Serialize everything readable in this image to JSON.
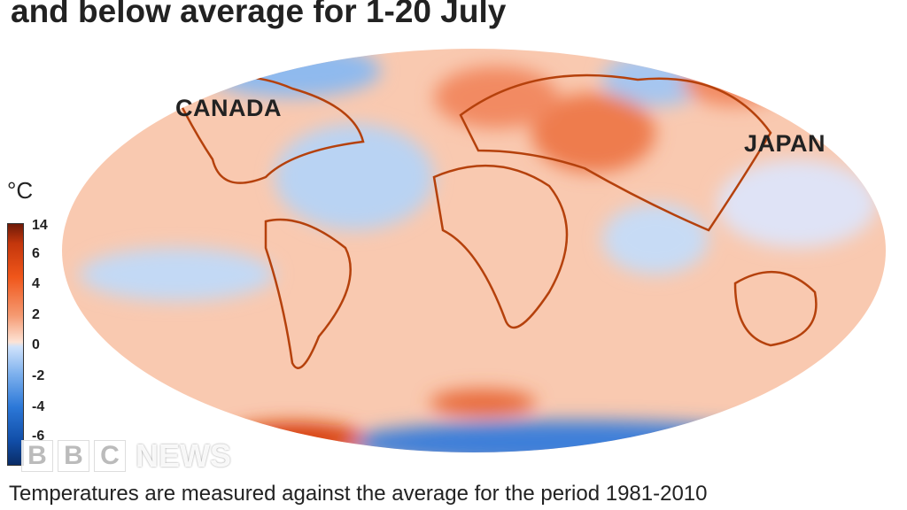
{
  "title": "and below average for 1-20 July",
  "map": {
    "labels": {
      "canada": "CANADA",
      "japan": "JAPAN"
    }
  },
  "legend": {
    "unit": "°C",
    "ticks": [
      "14",
      "6",
      "4",
      "2",
      "0",
      "-2",
      "-4",
      "-6"
    ],
    "colors": {
      "max": "#6e1a08",
      "warm": "#f0561a",
      "zero": "#fde3d5",
      "cool": "#2c78d8",
      "min": "#0a2c66"
    }
  },
  "logo": {
    "letters": [
      "B",
      "B",
      "C"
    ],
    "news": "NEWS"
  },
  "caption": "Temperatures are measured against the average for the period 1981-2010"
}
